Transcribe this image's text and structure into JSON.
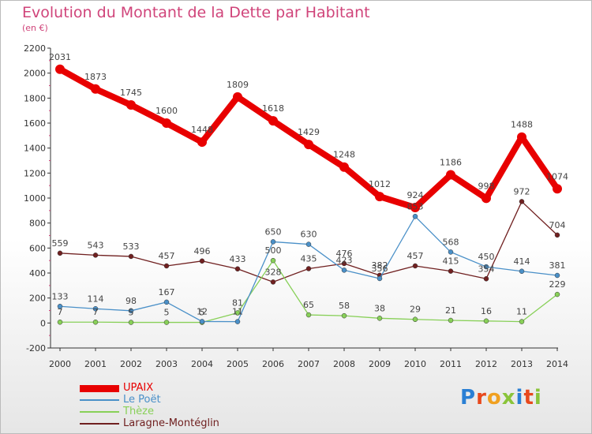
{
  "title": "Evolution du Montant de la Dette par Habitant",
  "subtitle": "(en €)",
  "logo": {
    "text": "Proxiti",
    "colors": [
      "#2a7fd4",
      "#e8481c",
      "#f0a020",
      "#8ac43a",
      "#2a7fd4",
      "#e8481c",
      "#8ac43a"
    ]
  },
  "chart_data": {
    "type": "line",
    "x": [
      "2000",
      "2001",
      "2002",
      "2003",
      "2004",
      "2005",
      "2006",
      "2007",
      "2008",
      "2009",
      "2010",
      "2011",
      "2012",
      "2013",
      "2014"
    ],
    "ylim": [
      -200,
      2200
    ],
    "yticks": [
      "-200",
      "0",
      "200",
      "400",
      "600",
      "800",
      "1000",
      "1200",
      "1400",
      "1600",
      "1800",
      "2000",
      "2200"
    ],
    "grid": false,
    "legend": "bottom-left",
    "series": [
      {
        "name": "UPAIX",
        "color": "#e80000",
        "values": [
          2031,
          1873,
          1745,
          1600,
          1448,
          1809,
          1618,
          1429,
          1248,
          1012,
          924,
          1186,
          998,
          1488,
          1074
        ],
        "labels": [
          "2031",
          "1873",
          "1745",
          "1600",
          "1448",
          "1809",
          "1618",
          "1429",
          "1248",
          "1012",
          "924",
          "1186",
          "998",
          "1488",
          "1074"
        ]
      },
      {
        "name": "Le Poët",
        "color": "#4a90c8",
        "values": [
          133,
          114,
          98,
          167,
          12,
          11,
          650,
          630,
          423,
          356,
          853,
          568,
          450,
          414,
          381
        ],
        "labels": [
          "133",
          "114",
          "98",
          "167",
          "12",
          "11",
          "650",
          "630",
          "423",
          "356",
          "853",
          "568",
          "450",
          "414",
          "381"
        ]
      },
      {
        "name": "Thèze",
        "color": "#88d058",
        "values": [
          7,
          7,
          5,
          5,
          5,
          81,
          500,
          65,
          58,
          38,
          29,
          21,
          16,
          11,
          229
        ],
        "labels": [
          "7",
          "7",
          "5",
          "5",
          "5",
          "81",
          "500",
          "65",
          "58",
          "38",
          "29",
          "21",
          "16",
          "11",
          "229"
        ]
      },
      {
        "name": "Laragne-Montéglin",
        "color": "#702020",
        "values": [
          559,
          543,
          533,
          457,
          496,
          433,
          328,
          435,
          476,
          382,
          457,
          415,
          354,
          972,
          704
        ],
        "labels": [
          "559",
          "543",
          "533",
          "457",
          "496",
          "433",
          "328",
          "435",
          "476",
          "382",
          "457",
          "415",
          "354",
          "972",
          "704"
        ]
      }
    ]
  }
}
